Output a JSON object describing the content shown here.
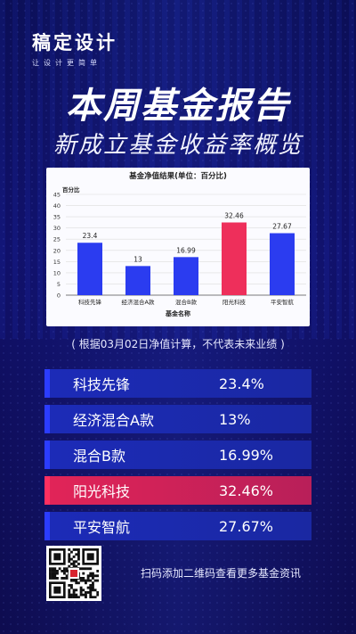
{
  "logo": {
    "main": "稿定设计",
    "sub": "让设计更简单"
  },
  "header": {
    "title": "本周基金报告",
    "subtitle": "新成立基金收益率概览"
  },
  "chart_data": {
    "type": "bar",
    "title": "基金净值结果(单位：百分比)",
    "ylabel": "百分比",
    "xlabel": "基金名称",
    "categories": [
      "科技先锋",
      "经济混合A款",
      "混合B款",
      "阳光科技",
      "平安智航"
    ],
    "values": [
      23.4,
      13,
      16.99,
      32.46,
      27.67
    ],
    "data_labels": [
      "23.4",
      "13",
      "16.99",
      "32.46",
      "27.67"
    ],
    "ylim": [
      0,
      45
    ],
    "yticks": [
      "0",
      "5",
      "10",
      "15",
      "20",
      "25",
      "30",
      "35",
      "40",
      "45"
    ],
    "grid": true,
    "colors": {
      "bar": "#2b3cf0",
      "highlight": "#ee2f5b"
    },
    "highlight_index": 3
  },
  "note": "( 根据03月02日净值计算，不代表未来业绩 )",
  "rows": [
    {
      "name": "科技先锋",
      "value": "23.4%"
    },
    {
      "name": "经济混合A款",
      "value": "13%"
    },
    {
      "name": "混合B款",
      "value": "16.99%"
    },
    {
      "name": "阳光科技",
      "value": "32.46%"
    },
    {
      "name": "平安智航",
      "value": "27.67%"
    }
  ],
  "footer": {
    "text": "扫码添加二维码查看更多基金资讯"
  },
  "colors": {
    "background": "#0d0f4a",
    "row": "#1c2bb8",
    "row_highlight": "#e22458"
  }
}
